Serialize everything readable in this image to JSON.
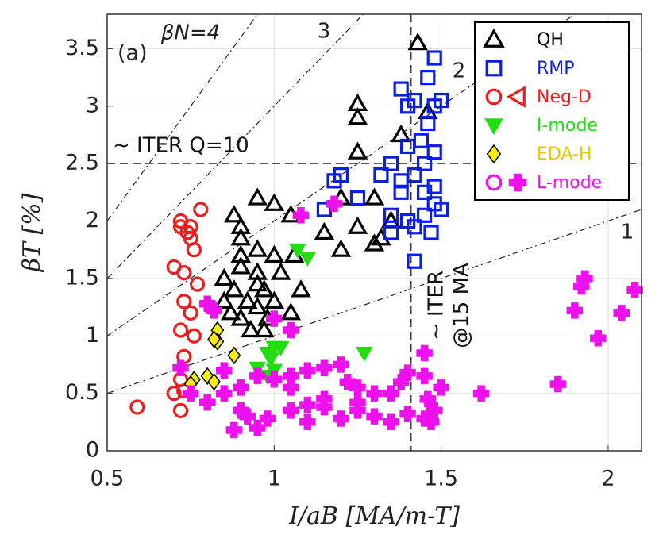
{
  "chart_data": {
    "type": "scatter",
    "panel_label": "(a)",
    "x_label": "I/aB [MA/m-T]",
    "y_label": "βT [%]",
    "xlim": [
      0.5,
      2.1
    ],
    "ylim": [
      0,
      3.8
    ],
    "xticks": [
      0.5,
      1,
      1.5,
      2
    ],
    "yticks": [
      0,
      0.5,
      1,
      1.5,
      2,
      2.5,
      3,
      3.5
    ],
    "grid": true,
    "legend": "upper right",
    "beta_n_lines": [
      {
        "value": 1,
        "label": "1"
      },
      {
        "value": 2,
        "label": "2"
      },
      {
        "value": 3,
        "label": "3"
      },
      {
        "value": 4,
        "label": "βN=4"
      }
    ],
    "hline": {
      "value": 2.5,
      "label": "~ ITER Q=10"
    },
    "vline": {
      "value": 1.41,
      "label": [
        "~ ITER",
        "@15 MA"
      ]
    },
    "series": [
      {
        "name": "QH",
        "color": "#000000",
        "marker": "triangle-up",
        "legend_markers": [
          "triangle-up"
        ],
        "x": [
          1.43,
          1.25,
          1.25,
          1.46,
          1.25,
          1.38,
          1.05,
          1.0,
          0.95,
          0.88,
          0.9,
          1.2,
          1.15,
          1.2,
          1.3,
          1.25,
          1.35,
          1.3,
          1.32,
          1.0,
          0.95,
          0.9,
          0.85,
          0.88,
          0.9,
          0.95,
          0.92,
          0.85,
          0.95,
          1.02,
          0.97,
          0.9,
          0.93,
          0.97,
          1.05,
          1.08,
          1.0,
          0.87,
          0.9,
          1.06,
          0.98,
          0.95
        ],
        "values": [
          3.55,
          3.02,
          2.9,
          2.95,
          2.6,
          2.75,
          2.05,
          2.15,
          2.2,
          2.05,
          1.95,
          2.2,
          1.9,
          1.75,
          1.8,
          1.95,
          2.0,
          2.2,
          1.85,
          1.7,
          1.75,
          1.85,
          1.5,
          1.4,
          1.6,
          1.55,
          1.3,
          1.3,
          1.45,
          1.55,
          1.4,
          1.15,
          1.05,
          1.05,
          1.2,
          1.4,
          1.3,
          1.2,
          1.7,
          1.7,
          1.15,
          1.25
        ]
      },
      {
        "name": "RMP",
        "color": "#0a1ee6",
        "marker": "square",
        "legend_markers": [
          "square"
        ],
        "x": [
          1.48,
          1.46,
          1.48,
          1.5,
          1.46,
          1.4,
          1.38,
          1.42,
          1.44,
          1.4,
          1.35,
          1.45,
          1.42,
          1.38,
          1.32,
          1.25,
          1.18,
          1.2,
          1.15,
          1.45,
          1.48,
          1.42,
          1.4,
          1.35,
          1.38,
          1.48,
          1.5,
          1.47,
          1.35,
          1.42,
          1.48,
          1.45
        ],
        "values": [
          3.42,
          3.25,
          3.0,
          3.05,
          2.85,
          3.0,
          3.15,
          3.05,
          2.7,
          2.65,
          2.5,
          2.5,
          2.4,
          2.35,
          2.4,
          2.2,
          2.35,
          2.4,
          2.1,
          2.05,
          2.15,
          1.95,
          2.0,
          2.05,
          2.25,
          2.3,
          2.1,
          1.9,
          1.9,
          1.65,
          2.6,
          2.25
        ]
      },
      {
        "name": "Neg-D",
        "color": "#ee1c1c",
        "marker": "circle",
        "legend_markers": [
          "circle",
          "triangle-left"
        ],
        "x": [
          0.72,
          0.74,
          0.72,
          0.75,
          0.73,
          0.7,
          0.73,
          0.75,
          0.72,
          0.73,
          0.72,
          0.73,
          0.72,
          0.7,
          0.59,
          0.78,
          0.76,
          0.75,
          0.77,
          0.76
        ],
        "values": [
          1.95,
          1.9,
          2.0,
          1.95,
          1.55,
          1.6,
          1.3,
          1.2,
          1.05,
          0.82,
          0.62,
          0.52,
          0.35,
          0.5,
          0.38,
          2.1,
          1.75,
          1.85,
          1.45,
          1.0
        ]
      },
      {
        "name": "I-mode",
        "color": "#22dd11",
        "marker": "triangle-down",
        "legend_markers": [
          "triangle-down"
        ],
        "x": [
          1.07,
          1.1,
          1.0,
          0.98,
          1.02,
          1.0,
          0.95,
          0.98,
          1.27,
          0.99
        ],
        "values": [
          1.75,
          1.68,
          0.9,
          0.85,
          0.9,
          0.7,
          0.72,
          0.65,
          0.85,
          0.8
        ]
      },
      {
        "name": "EDA-H",
        "color": "#f5ee10",
        "marker": "diamond",
        "legend_markers": [
          "diamond"
        ],
        "x": [
          0.83,
          0.83,
          0.82,
          0.88,
          0.8,
          0.76,
          0.75,
          0.82
        ],
        "values": [
          1.05,
          0.95,
          0.97,
          0.83,
          0.65,
          0.62,
          0.58,
          0.6
        ]
      },
      {
        "name": "L-mode",
        "color": "#ee11ee",
        "marker": "plus",
        "legend_markers": [
          "circle",
          "plus"
        ],
        "x": [
          1.93,
          1.92,
          2.08,
          1.9,
          2.04,
          1.97,
          1.85,
          1.62,
          1.48,
          1.46,
          1.45,
          1.5,
          1.47,
          1.45,
          1.38,
          1.45,
          1.4,
          1.35,
          1.3,
          1.25,
          1.2,
          1.22,
          1.15,
          1.1,
          1.05,
          1.0,
          0.95,
          0.9,
          0.85,
          0.8,
          0.75,
          0.72,
          0.85,
          0.9,
          0.92,
          0.98,
          1.05,
          1.1,
          1.15,
          1.2,
          1.25,
          1.3,
          1.35,
          1.4,
          0.88,
          0.95,
          1.1,
          1.15,
          1.25,
          1.05,
          0.8,
          0.82,
          1.08,
          1.18,
          1.0,
          1.05
        ],
        "values": [
          1.5,
          1.43,
          1.4,
          1.22,
          1.2,
          0.98,
          0.58,
          0.5,
          0.35,
          0.45,
          0.28,
          0.55,
          0.25,
          0.65,
          0.6,
          0.85,
          0.68,
          0.5,
          0.5,
          0.55,
          0.75,
          0.6,
          0.72,
          0.7,
          0.55,
          0.62,
          0.65,
          0.55,
          0.5,
          0.42,
          0.5,
          0.72,
          0.7,
          0.35,
          0.3,
          0.28,
          0.35,
          0.4,
          0.45,
          0.28,
          0.35,
          0.3,
          0.25,
          0.32,
          0.18,
          0.2,
          0.25,
          0.38,
          0.42,
          0.65,
          1.28,
          1.22,
          2.05,
          2.15,
          1.15,
          1.05
        ]
      }
    ]
  }
}
